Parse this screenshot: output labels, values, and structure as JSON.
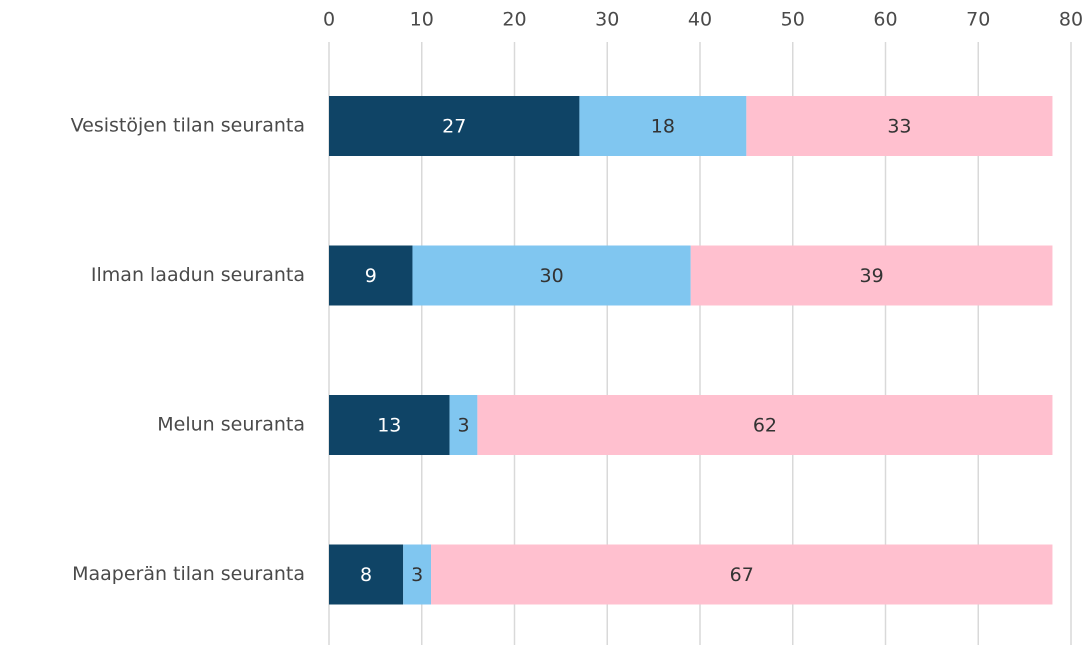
{
  "chart_data": {
    "type": "stacked-barh",
    "categories": [
      "Vesistöjen tilan seuranta",
      "Ilman laadun seuranta",
      "Melun seuranta",
      "Maaperän tilan seuranta"
    ],
    "series": [
      {
        "color": "#0f4466",
        "values": [
          27,
          9,
          13,
          8
        ]
      },
      {
        "color": "#80c6f0",
        "values": [
          18,
          30,
          3,
          3
        ]
      },
      {
        "color": "#ffc0cf",
        "values": [
          33,
          39,
          62,
          67
        ]
      }
    ],
    "xlim": [
      0,
      80
    ],
    "xticks": [
      0,
      10,
      20,
      30,
      40,
      50,
      60,
      70,
      80
    ],
    "grid": true
  }
}
